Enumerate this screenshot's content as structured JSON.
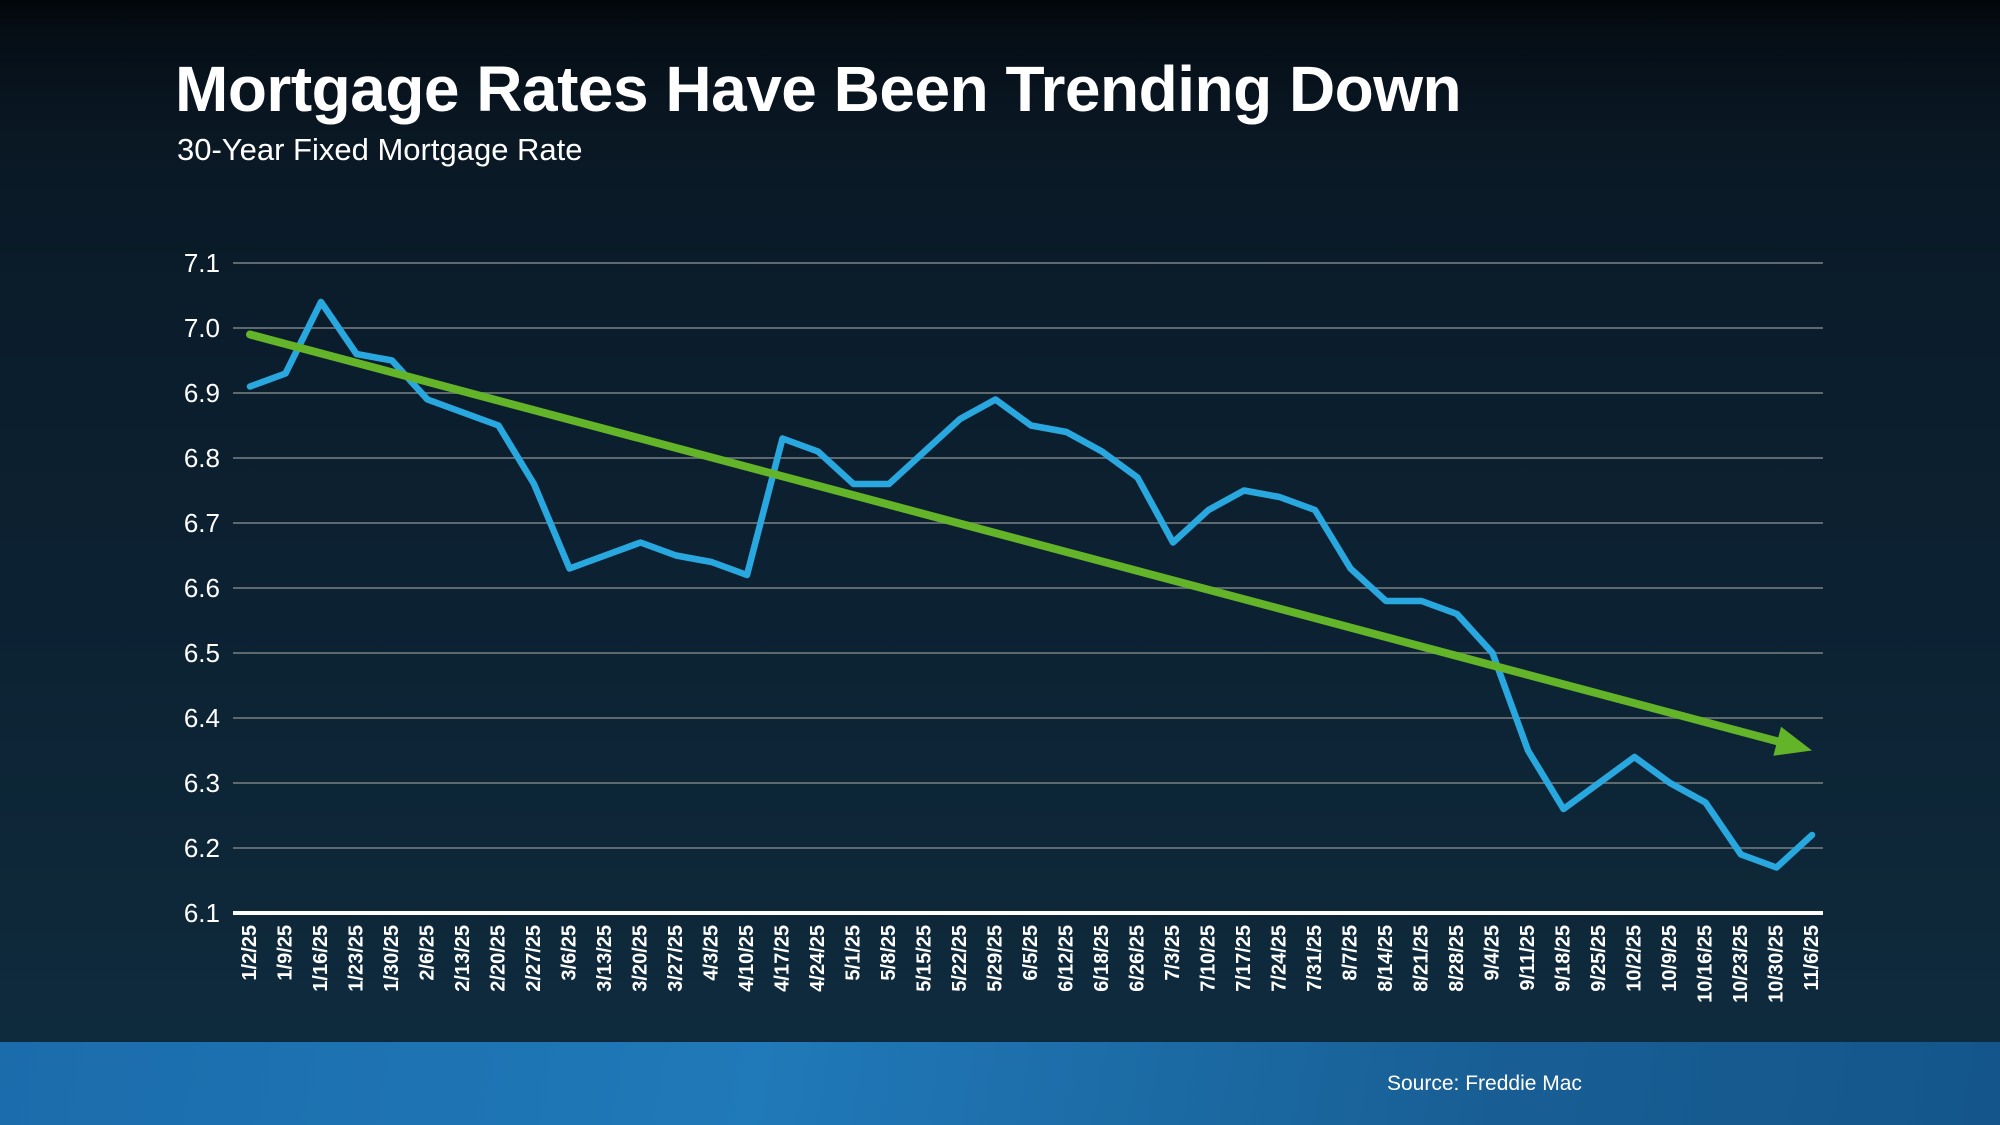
{
  "header": {
    "title": "Mortgage Rates Have Been Trending Down",
    "subtitle": "30-Year Fixed Mortgage Rate"
  },
  "footer": {
    "source": "Source: Freddie Mac"
  },
  "colors": {
    "rate_line": "#29A8E0",
    "trend_arrow": "#64B42A",
    "grid_line": "#5d686f",
    "axis_line": "#ffffff",
    "background_top": "#020609",
    "background_bottom": "#0f2c40",
    "footer_bar_left": "#1b6cab",
    "footer_bar_right": "#14568b",
    "text": "#ffffff"
  },
  "chart_data": {
    "type": "line",
    "title": "Mortgage Rates Have Been Trending Down",
    "subtitle": "30-Year Fixed Mortgage Rate",
    "xlabel": "",
    "ylabel": "",
    "ylim": [
      6.1,
      7.1
    ],
    "ytick_step": 0.1,
    "yticks": [
      "7.1",
      "7.0",
      "6.9",
      "6.8",
      "6.7",
      "6.6",
      "6.5",
      "6.4",
      "6.3",
      "6.2",
      "6.1"
    ],
    "grid": true,
    "legend": false,
    "x": [
      "1/2/25",
      "1/9/25",
      "1/16/25",
      "1/23/25",
      "1/30/25",
      "2/6/25",
      "2/13/25",
      "2/20/25",
      "2/27/25",
      "3/6/25",
      "3/13/25",
      "3/20/25",
      "3/27/25",
      "4/3/25",
      "4/10/25",
      "4/17/25",
      "4/24/25",
      "5/1/25",
      "5/8/25",
      "5/15/25",
      "5/22/25",
      "5/29/25",
      "6/5/25",
      "6/12/25",
      "6/18/25",
      "6/26/25",
      "7/3/25",
      "7/10/25",
      "7/17/25",
      "7/24/25",
      "7/31/25",
      "8/7/25",
      "8/14/25",
      "8/21/25",
      "8/28/25",
      "9/4/25",
      "9/11/25",
      "9/18/25",
      "9/25/25",
      "10/2/25",
      "10/9/25",
      "10/16/25",
      "10/23/25",
      "10/30/25",
      "11/6/25"
    ],
    "series": [
      {
        "name": "30-Year Fixed Mortgage Rate",
        "kind": "data-line",
        "color": "#29A8E0",
        "values": [
          6.91,
          6.93,
          7.04,
          6.96,
          6.95,
          6.89,
          6.87,
          6.85,
          6.76,
          6.63,
          6.65,
          6.67,
          6.65,
          6.64,
          6.62,
          6.83,
          6.81,
          6.76,
          6.76,
          6.81,
          6.86,
          6.89,
          6.85,
          6.84,
          6.81,
          6.77,
          6.67,
          6.72,
          6.75,
          6.74,
          6.72,
          6.63,
          6.58,
          6.58,
          6.56,
          6.5,
          6.35,
          6.26,
          6.3,
          6.34,
          6.3,
          6.27,
          6.19,
          6.17,
          6.22
        ]
      },
      {
        "name": "Downward trend",
        "kind": "trend-arrow",
        "color": "#64B42A",
        "start_value": 6.99,
        "end_value": 6.35
      }
    ]
  }
}
